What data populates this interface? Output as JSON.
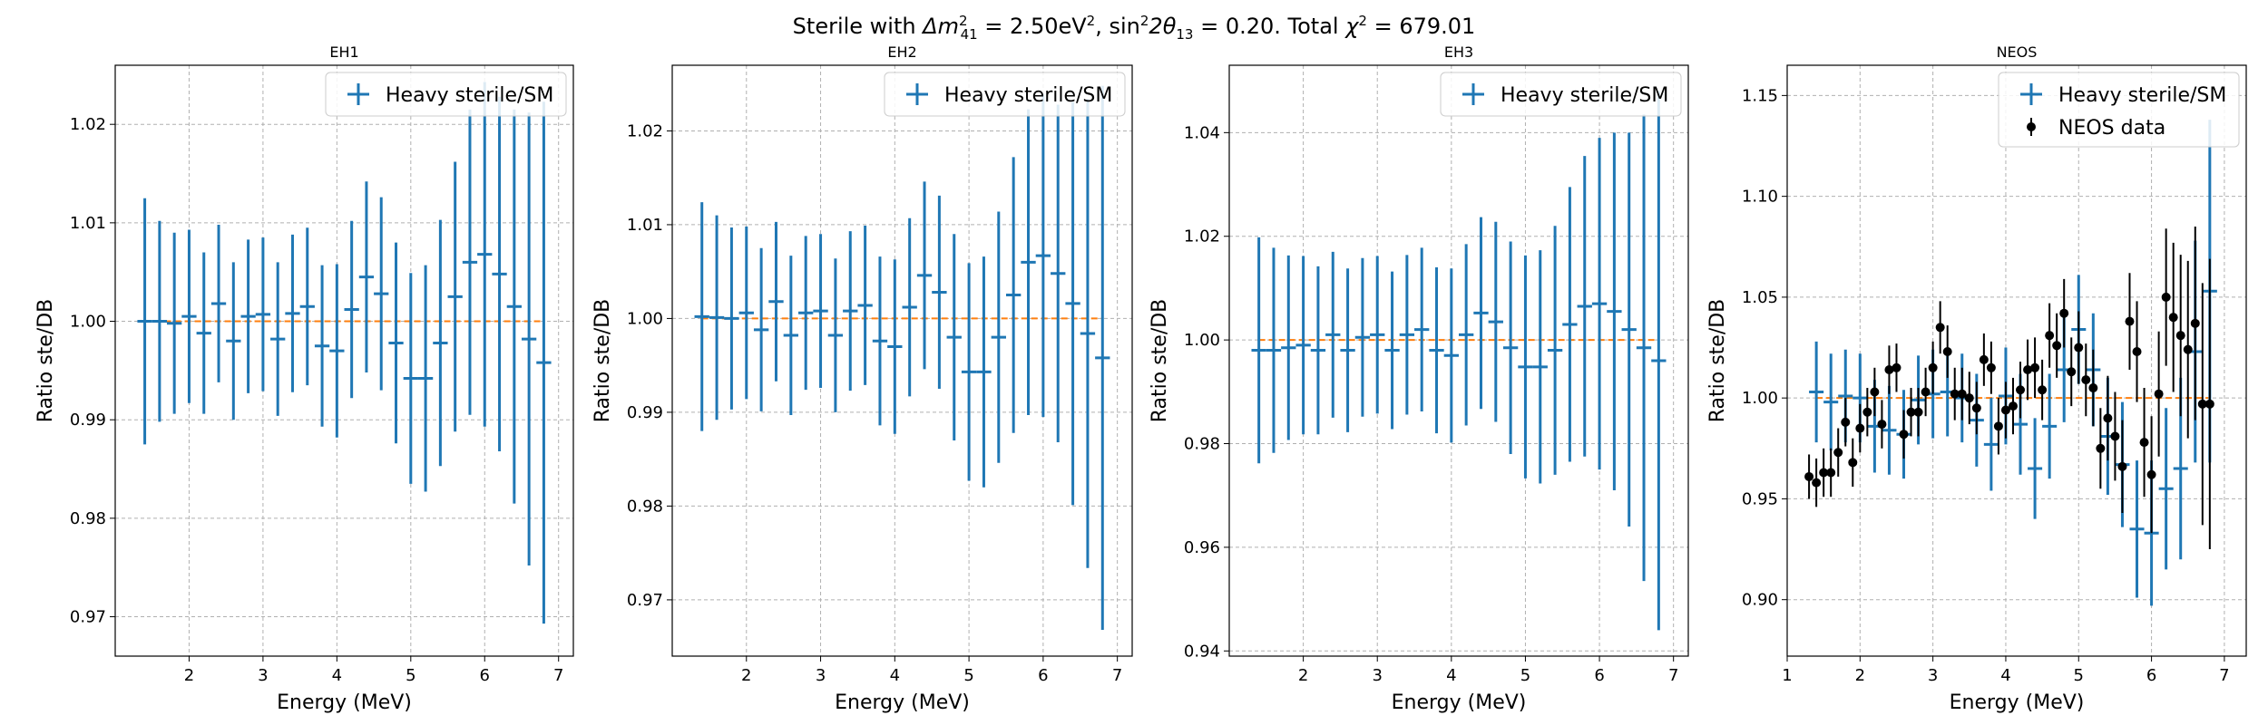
{
  "figure": {
    "suptitle": {
      "prefix": "Sterile with ",
      "dm_symbol": "Δm",
      "dm_sup": "2",
      "dm_sub": "41",
      "dm_value": " = 2.50eV",
      "dm_unit_sup": "2",
      "sep": ", ",
      "sin_text": "sin",
      "sin_sup": "2",
      "theta_text": "2θ",
      "theta_sub": "13",
      "theta_value": " = 0.20. Total ",
      "chi_text": "χ",
      "chi_sup": "2",
      "chi_value": " = 679.01"
    }
  },
  "colors": {
    "model": "#1f77b4",
    "reference": "#ff7f0e",
    "data": "#000000",
    "grid": "#b0b0b0"
  },
  "chart_data": [
    {
      "type": "scatter",
      "title": "EH1",
      "xlabel": "Energy (MeV)",
      "ylabel": "Ratio ste/DB",
      "xlim": [
        1.0,
        7.2
      ],
      "ylim": [
        0.966,
        1.026
      ],
      "xticks": [
        2,
        3,
        4,
        5,
        6,
        7
      ],
      "yticks": [
        0.97,
        0.98,
        0.99,
        1.0,
        1.01,
        1.02
      ],
      "grid": true,
      "legend_position": "top-right",
      "legend": [
        "Heavy sterile/SM"
      ],
      "reference_line": 1.0,
      "series": [
        {
          "name": "Heavy sterile/SM",
          "x": [
            1.4,
            1.6,
            1.8,
            2.0,
            2.2,
            2.4,
            2.6,
            2.8,
            3.0,
            3.2,
            3.4,
            3.6,
            3.8,
            4.0,
            4.2,
            4.4,
            4.6,
            4.8,
            5.0,
            5.2,
            5.4,
            5.6,
            5.8,
            6.0,
            6.2,
            6.4,
            6.6,
            6.8
          ],
          "x_halfwidth": 0.1,
          "y": [
            1.0,
            1.0,
            0.9998,
            1.0005,
            0.9988,
            1.0018,
            0.998,
            1.0005,
            1.0007,
            0.9982,
            1.0008,
            1.0015,
            0.9975,
            0.997,
            1.0012,
            1.0045,
            1.0028,
            0.9978,
            0.9942,
            0.9942,
            0.9978,
            1.0025,
            1.006,
            1.0068,
            1.0048,
            1.0015,
            0.9982,
            0.9958
          ],
          "yerr": [
            0.0125,
            0.0102,
            0.0092,
            0.0088,
            0.0082,
            0.008,
            0.008,
            0.0078,
            0.0078,
            0.0078,
            0.008,
            0.008,
            0.0082,
            0.0088,
            0.009,
            0.0097,
            0.0098,
            0.0102,
            0.0107,
            0.0115,
            0.0125,
            0.0137,
            0.0155,
            0.0175,
            0.018,
            0.02,
            0.023,
            0.0265
          ]
        }
      ]
    },
    {
      "type": "scatter",
      "title": "EH2",
      "xlabel": "Energy (MeV)",
      "ylabel": "Ratio ste/DB",
      "xlim": [
        1.0,
        7.2
      ],
      "ylim": [
        0.964,
        1.027
      ],
      "xticks": [
        2,
        3,
        4,
        5,
        6,
        7
      ],
      "yticks": [
        0.97,
        0.98,
        0.99,
        1.0,
        1.01,
        1.02
      ],
      "grid": true,
      "legend_position": "top-right",
      "legend": [
        "Heavy sterile/SM"
      ],
      "reference_line": 1.0,
      "series": [
        {
          "name": "Heavy sterile/SM",
          "x": [
            1.4,
            1.6,
            1.8,
            2.0,
            2.2,
            2.4,
            2.6,
            2.8,
            3.0,
            3.2,
            3.4,
            3.6,
            3.8,
            4.0,
            4.2,
            4.4,
            4.6,
            4.8,
            5.0,
            5.2,
            5.4,
            5.6,
            5.8,
            6.0,
            6.2,
            6.4,
            6.6,
            6.8
          ],
          "x_halfwidth": 0.1,
          "y": [
            1.0002,
            1.0001,
            1.0,
            1.0006,
            0.9988,
            1.0018,
            0.9982,
            1.0006,
            1.0008,
            0.9982,
            1.0008,
            1.0014,
            0.9976,
            0.997,
            1.0012,
            1.0046,
            1.0028,
            0.998,
            0.9943,
            0.9943,
            0.998,
            1.0025,
            1.006,
            1.0067,
            1.0048,
            1.0016,
            0.9984,
            0.9958
          ],
          "yerr": [
            0.0122,
            0.0109,
            0.0097,
            0.0092,
            0.0087,
            0.0085,
            0.0085,
            0.0082,
            0.0082,
            0.0082,
            0.0085,
            0.0085,
            0.009,
            0.0093,
            0.0095,
            0.01,
            0.0103,
            0.011,
            0.0116,
            0.0123,
            0.0134,
            0.0147,
            0.0163,
            0.0172,
            0.018,
            0.0215,
            0.025,
            0.029
          ]
        }
      ]
    },
    {
      "type": "scatter",
      "title": "EH3",
      "xlabel": "Energy (MeV)",
      "ylabel": "Ratio ste/DB",
      "xlim": [
        1.0,
        7.2
      ],
      "ylim": [
        0.939,
        1.053
      ],
      "xticks": [
        2,
        3,
        4,
        5,
        6,
        7
      ],
      "yticks": [
        0.94,
        0.96,
        0.98,
        1.0,
        1.02,
        1.04
      ],
      "grid": true,
      "legend_position": "top-right",
      "legend": [
        "Heavy sterile/SM"
      ],
      "reference_line": 1.0,
      "series": [
        {
          "name": "Heavy sterile/SM",
          "x": [
            1.4,
            1.6,
            1.8,
            2.0,
            2.2,
            2.4,
            2.6,
            2.8,
            3.0,
            3.2,
            3.4,
            3.6,
            3.8,
            4.0,
            4.2,
            4.4,
            4.6,
            4.8,
            5.0,
            5.2,
            5.4,
            5.6,
            5.8,
            6.0,
            6.2,
            6.4,
            6.6,
            6.8
          ],
          "x_halfwidth": 0.1,
          "y": [
            0.998,
            0.998,
            0.9985,
            0.999,
            0.998,
            1.001,
            0.998,
            1.0005,
            1.001,
            0.998,
            1.001,
            1.002,
            0.998,
            0.997,
            1.001,
            1.0052,
            1.0035,
            0.9985,
            0.9948,
            0.9948,
            0.998,
            1.003,
            1.0065,
            1.007,
            1.0055,
            1.002,
            0.9985,
            0.996
          ],
          "yerr": [
            0.0218,
            0.0198,
            0.0178,
            0.0172,
            0.0162,
            0.016,
            0.0158,
            0.0153,
            0.0152,
            0.0152,
            0.0154,
            0.0158,
            0.016,
            0.0168,
            0.0175,
            0.0185,
            0.0193,
            0.0205,
            0.0215,
            0.0225,
            0.024,
            0.0265,
            0.029,
            0.032,
            0.0345,
            0.038,
            0.045,
            0.052
          ]
        }
      ]
    },
    {
      "type": "scatter",
      "title": "NEOS",
      "xlabel": "Energy (MeV)",
      "ylabel": "Ratio ste/DB",
      "xlim": [
        1.0,
        7.3
      ],
      "ylim": [
        0.872,
        1.165
      ],
      "xticks": [
        1,
        2,
        3,
        4,
        5,
        6,
        7
      ],
      "yticks": [
        0.9,
        0.95,
        1.0,
        1.05,
        1.1,
        1.15
      ],
      "grid": true,
      "legend_position": "top-right",
      "legend": [
        "Heavy sterile/SM",
        "NEOS data"
      ],
      "reference_line": 1.0,
      "series": [
        {
          "name": "Heavy sterile/SM",
          "x": [
            1.4,
            1.6,
            1.8,
            2.0,
            2.2,
            2.4,
            2.6,
            2.8,
            3.0,
            3.2,
            3.4,
            3.6,
            3.8,
            4.0,
            4.2,
            4.4,
            4.6,
            4.8,
            5.0,
            5.2,
            5.4,
            5.6,
            5.8,
            6.0,
            6.2,
            6.4,
            6.6,
            6.8
          ],
          "x_halfwidth": 0.1,
          "y": [
            1.003,
            0.998,
            1.001,
            1.0,
            0.986,
            0.984,
            0.982,
            0.999,
            1.002,
            1.003,
            1.0,
            0.989,
            0.977,
            1.001,
            0.987,
            0.965,
            0.986,
            1.014,
            1.034,
            1.014,
            0.981,
            0.967,
            0.935,
            0.933,
            0.955,
            0.965,
            1.023,
            1.053
          ],
          "yerr": [
            0.025,
            0.024,
            0.023,
            0.022,
            0.023,
            0.022,
            0.022,
            0.022,
            0.022,
            0.022,
            0.022,
            0.023,
            0.023,
            0.024,
            0.025,
            0.025,
            0.026,
            0.026,
            0.027,
            0.028,
            0.029,
            0.031,
            0.034,
            0.036,
            0.04,
            0.045,
            0.055,
            0.085
          ]
        },
        {
          "name": "NEOS data",
          "x": [
            1.3,
            1.4,
            1.5,
            1.6,
            1.7,
            1.8,
            1.9,
            2.0,
            2.1,
            2.2,
            2.3,
            2.4,
            2.5,
            2.6,
            2.7,
            2.8,
            2.9,
            3.0,
            3.1,
            3.2,
            3.3,
            3.4,
            3.5,
            3.6,
            3.7,
            3.8,
            3.9,
            4.0,
            4.1,
            4.2,
            4.3,
            4.4,
            4.5,
            4.6,
            4.7,
            4.8,
            4.9,
            5.0,
            5.1,
            5.2,
            5.3,
            5.4,
            5.5,
            5.6,
            5.7,
            5.8,
            5.9,
            6.0,
            6.1,
            6.2,
            6.3,
            6.4,
            6.5,
            6.6,
            6.7,
            6.8
          ],
          "y": [
            0.961,
            0.958,
            0.963,
            0.963,
            0.973,
            0.988,
            0.968,
            0.985,
            0.993,
            1.003,
            0.987,
            1.014,
            1.015,
            0.982,
            0.993,
            0.993,
            1.003,
            1.015,
            1.035,
            1.023,
            1.002,
            1.002,
            1.0,
            0.995,
            1.019,
            1.015,
            0.986,
            0.994,
            0.996,
            1.004,
            1.014,
            1.015,
            1.004,
            1.031,
            1.026,
            1.042,
            1.013,
            1.025,
            1.009,
            1.005,
            0.975,
            0.99,
            0.981,
            0.966,
            1.038,
            1.023,
            0.978,
            0.962,
            1.002,
            1.05,
            1.04,
            1.031,
            1.024,
            1.037,
            0.997,
            0.997
          ],
          "yerr": [
            0.011,
            0.012,
            0.012,
            0.012,
            0.012,
            0.012,
            0.012,
            0.012,
            0.012,
            0.012,
            0.012,
            0.012,
            0.012,
            0.012,
            0.012,
            0.012,
            0.012,
            0.013,
            0.013,
            0.013,
            0.013,
            0.013,
            0.013,
            0.013,
            0.013,
            0.013,
            0.014,
            0.014,
            0.014,
            0.014,
            0.015,
            0.015,
            0.015,
            0.016,
            0.016,
            0.017,
            0.017,
            0.018,
            0.018,
            0.019,
            0.02,
            0.021,
            0.022,
            0.023,
            0.024,
            0.025,
            0.027,
            0.029,
            0.031,
            0.034,
            0.037,
            0.04,
            0.044,
            0.048,
            0.06,
            0.072
          ]
        }
      ]
    }
  ]
}
